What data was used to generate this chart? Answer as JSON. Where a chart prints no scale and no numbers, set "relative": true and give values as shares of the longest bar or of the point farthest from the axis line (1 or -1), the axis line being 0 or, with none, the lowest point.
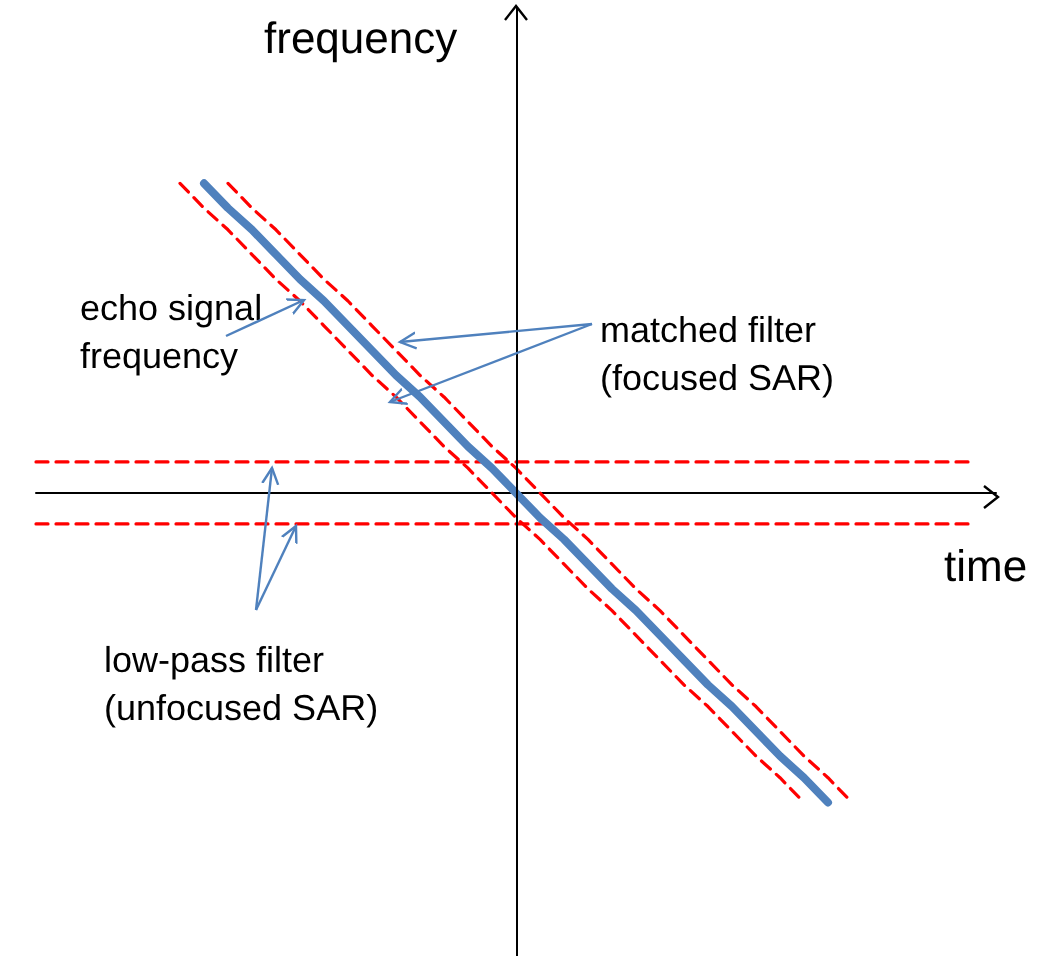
{
  "chart_data": {
    "type": "line",
    "relative": true,
    "xlabel": "time",
    "ylabel": "frequency",
    "grid": false,
    "marker": "none",
    "categories": [
      null,
      null,
      null,
      null,
      null,
      null,
      null,
      null,
      null,
      null,
      null,
      null,
      null,
      null,
      null,
      null,
      null,
      null,
      null,
      null,
      null,
      null,
      null,
      null,
      null,
      null,
      null,
      null,
      null,
      null,
      null,
      null,
      null,
      null,
      null,
      null,
      null,
      null,
      null,
      null,
      null
    ],
    "series": [
      {
        "color": "#ff0000",
        "line_style": "dashed",
        "values": [
          0.1,
          0.1,
          0.1,
          0.1,
          0.1,
          0.1,
          0.1,
          0.1,
          0.1,
          0.1,
          0.1,
          0.1,
          0.1,
          0.1,
          0.1,
          0.1,
          0.1,
          0.1,
          0.1,
          0.1,
          0.1,
          0.1,
          0.1,
          0.1,
          0.1,
          0.1,
          0.1,
          0.1,
          0.1,
          0.1,
          0.1,
          0.1,
          0.1,
          0.1,
          0.1,
          0.1,
          0.1,
          0.1,
          0.1,
          0.1,
          null
        ]
      },
      {
        "color": "#ff0000",
        "line_style": "dashed",
        "values": [
          -0.1,
          -0.1,
          -0.1,
          -0.1,
          -0.1,
          -0.1,
          -0.1,
          -0.1,
          -0.1,
          -0.1,
          -0.1,
          -0.1,
          -0.1,
          -0.1,
          -0.1,
          -0.1,
          -0.1,
          -0.1,
          -0.1,
          -0.1,
          -0.1,
          -0.1,
          -0.1,
          -0.1,
          -0.1,
          -0.1,
          -0.1,
          -0.1,
          -0.1,
          -0.1,
          -0.1,
          -0.1,
          -0.1,
          -0.1,
          -0.1,
          -0.1,
          -0.1,
          -0.1,
          -0.1,
          -0.1,
          null
        ]
      },
      {
        "color": "#ff0000",
        "line_style": "dashed",
        "values": [
          null,
          null,
          null,
          null,
          null,
          null,
          1,
          0.92,
          0.85,
          0.77,
          0.69,
          0.62,
          0.54,
          0.46,
          0.38,
          0.31,
          0.23,
          0.15,
          0.08,
          0,
          -0.08,
          -0.15,
          -0.23,
          -0.31,
          -0.38,
          -0.46,
          -0.54,
          -0.62,
          -0.69,
          -0.77,
          -0.85,
          -0.92,
          -1,
          null,
          null,
          null,
          null,
          null,
          null,
          null,
          null
        ]
      },
      {
        "color": "#ff0000",
        "line_style": "dashed",
        "values": [
          null,
          null,
          null,
          null,
          null,
          null,
          null,
          null,
          1,
          0.92,
          0.85,
          0.77,
          0.69,
          0.62,
          0.54,
          0.46,
          0.38,
          0.31,
          0.23,
          0.15,
          0.08,
          0,
          -0.08,
          -0.15,
          -0.23,
          -0.31,
          -0.38,
          -0.46,
          -0.54,
          -0.62,
          -0.69,
          -0.77,
          -0.85,
          -0.92,
          -1,
          null,
          null,
          null,
          null,
          null,
          null
        ]
      },
      {
        "color": "#4f81bd",
        "line_style": "solid",
        "values": [
          null,
          null,
          null,
          null,
          null,
          null,
          null,
          1,
          0.92,
          0.85,
          0.77,
          0.69,
          0.62,
          0.54,
          0.46,
          0.38,
          0.31,
          0.23,
          0.15,
          0.08,
          0,
          -0.08,
          -0.15,
          -0.23,
          -0.31,
          -0.38,
          -0.46,
          -0.54,
          -0.62,
          -0.69,
          -0.77,
          -0.85,
          -0.92,
          -1,
          null,
          null,
          null,
          null,
          null,
          null,
          null
        ]
      }
    ],
    "annotations": [
      "echo signal frequency",
      "matched filter (focused SAR)",
      "low-pass filter (unfocused SAR)"
    ]
  }
}
